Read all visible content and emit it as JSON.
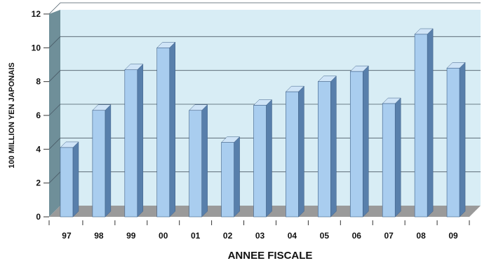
{
  "chart_data": {
    "type": "bar",
    "title": "",
    "xlabel": "ANNEE FISCALE",
    "ylabel": "100 MILLION YEN JAPONAIS",
    "categories": [
      "97",
      "98",
      "99",
      "00",
      "01",
      "02",
      "03",
      "04",
      "05",
      "06",
      "07",
      "08",
      "09"
    ],
    "values": [
      4.1,
      6.3,
      8.7,
      10.0,
      6.3,
      4.4,
      6.6,
      7.4,
      8.0,
      8.6,
      6.7,
      10.8,
      8.8
    ],
    "ylim": [
      0,
      12
    ],
    "yticks": [
      "0",
      "2",
      "4",
      "6",
      "8",
      "10",
      "12"
    ],
    "grid": true,
    "legend": "none",
    "colors": {
      "bar_front": "#a9cdef",
      "bar_side": "#587fab",
      "bar_top": "#cfe4f7",
      "back_wall": "#d8edf5",
      "side_wall": "#6f8f99",
      "floor": "#9a9a9a",
      "gridline": "#4a5a66"
    }
  }
}
